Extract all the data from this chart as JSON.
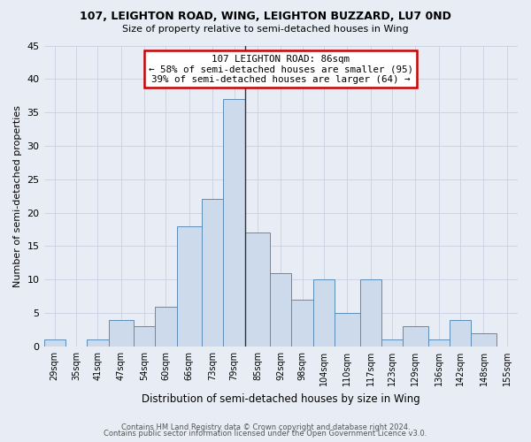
{
  "title": "107, LEIGHTON ROAD, WING, LEIGHTON BUZZARD, LU7 0ND",
  "subtitle": "Size of property relative to semi-detached houses in Wing",
  "xlabel": "Distribution of semi-detached houses by size in Wing",
  "ylabel": "Number of semi-detached properties",
  "categories": [
    "29sqm",
    "35sqm",
    "41sqm",
    "47sqm",
    "54sqm",
    "60sqm",
    "66sqm",
    "73sqm",
    "79sqm",
    "85sqm",
    "92sqm",
    "98sqm",
    "104sqm",
    "110sqm",
    "117sqm",
    "123sqm",
    "129sqm",
    "136sqm",
    "142sqm",
    "148sqm",
    "155sqm"
  ],
  "bin_edges": [
    29,
    35,
    41,
    47,
    54,
    60,
    66,
    73,
    79,
    85,
    92,
    98,
    104,
    110,
    117,
    123,
    129,
    136,
    142,
    148,
    155,
    161
  ],
  "values": [
    1,
    0,
    1,
    4,
    3,
    6,
    18,
    22,
    37,
    17,
    11,
    7,
    10,
    5,
    10,
    1,
    3,
    1,
    4,
    2,
    0
  ],
  "bar_fill": "#ccdaec",
  "bar_edge": "#5b8db8",
  "property_line_x": 85,
  "property_line_color": "#333333",
  "annotation_title": "107 LEIGHTON ROAD: 86sqm",
  "annotation_line1": "← 58% of semi-detached houses are smaller (95)",
  "annotation_line2": "39% of semi-detached houses are larger (64) →",
  "annotation_box_edgecolor": "#cc0000",
  "ylim": [
    0,
    45
  ],
  "yticks": [
    0,
    5,
    10,
    15,
    20,
    25,
    30,
    35,
    40,
    45
  ],
  "grid_color": "#c8d0e0",
  "background_color": "#e8edf5",
  "footer_line1": "Contains HM Land Registry data © Crown copyright and database right 2024.",
  "footer_line2": "Contains public sector information licensed under the Open Government Licence v3.0."
}
